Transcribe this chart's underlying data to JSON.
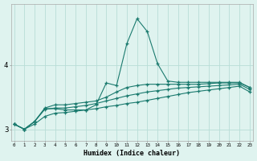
{
  "xlabel": "Humidex (Indice chaleur)",
  "ylabel": "",
  "x": [
    0,
    1,
    2,
    3,
    4,
    5,
    6,
    7,
    8,
    9,
    10,
    11,
    12,
    13,
    14,
    15,
    16,
    17,
    18,
    19,
    20,
    21,
    22,
    23
  ],
  "line1": [
    3.08,
    3.0,
    3.12,
    3.32,
    3.32,
    3.3,
    3.3,
    3.3,
    3.38,
    3.72,
    3.68,
    4.33,
    4.72,
    4.52,
    4.02,
    3.75,
    3.73,
    3.73,
    3.73,
    3.73,
    3.73,
    3.73,
    3.73,
    3.65
  ],
  "line2": [
    3.08,
    3.0,
    3.12,
    3.33,
    3.38,
    3.38,
    3.4,
    3.42,
    3.44,
    3.5,
    3.58,
    3.65,
    3.68,
    3.7,
    3.7,
    3.7,
    3.7,
    3.7,
    3.7,
    3.71,
    3.72,
    3.72,
    3.72,
    3.65
  ],
  "line3": [
    3.08,
    3.0,
    3.12,
    3.31,
    3.33,
    3.33,
    3.35,
    3.37,
    3.4,
    3.44,
    3.48,
    3.52,
    3.55,
    3.58,
    3.6,
    3.62,
    3.64,
    3.65,
    3.66,
    3.67,
    3.68,
    3.69,
    3.7,
    3.62
  ],
  "line4": [
    3.08,
    3.0,
    3.08,
    3.2,
    3.25,
    3.26,
    3.28,
    3.3,
    3.32,
    3.35,
    3.37,
    3.4,
    3.42,
    3.45,
    3.48,
    3.51,
    3.54,
    3.57,
    3.59,
    3.61,
    3.63,
    3.65,
    3.67,
    3.58
  ],
  "line_color": "#1a7a6e",
  "bg_color": "#dff3ef",
  "grid_color": "#b8ddd7",
  "yticks": [
    3,
    4
  ],
  "ylim": [
    2.82,
    4.95
  ],
  "xlim": [
    -0.3,
    23.3
  ]
}
